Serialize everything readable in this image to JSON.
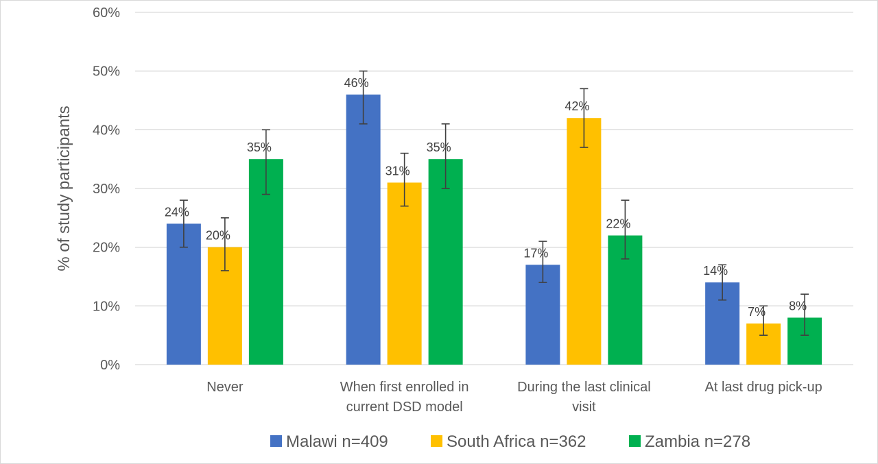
{
  "chart_data": {
    "type": "bar",
    "title": "",
    "xlabel": "",
    "ylabel": "% of study participants",
    "ylim": [
      0,
      60
    ],
    "yticks": [
      "0%",
      "10%",
      "20%",
      "30%",
      "40%",
      "50%",
      "60%"
    ],
    "grid": true,
    "legend_position": "bottom",
    "categories": [
      [
        "Never"
      ],
      [
        "When first enrolled in",
        "current DSD model"
      ],
      [
        "During the last clinical",
        "visit"
      ],
      [
        "At last drug pick-up"
      ]
    ],
    "series": [
      {
        "name": "Malawi n=409",
        "color": "#4472C4",
        "values": [
          24,
          46,
          17,
          14
        ],
        "labels": [
          "24%",
          "46%",
          "17%",
          "14%"
        ],
        "error_low": [
          20,
          41,
          14,
          11
        ],
        "error_high": [
          28,
          50,
          21,
          17
        ]
      },
      {
        "name": "South Africa n=362",
        "color": "#FFC000",
        "values": [
          20,
          31,
          42,
          7
        ],
        "labels": [
          "20%",
          "31%",
          "42%",
          "7%"
        ],
        "error_low": [
          16,
          27,
          37,
          5
        ],
        "error_high": [
          25,
          36,
          47,
          10
        ]
      },
      {
        "name": "Zambia n=278",
        "color": "#00B050",
        "values": [
          35,
          35,
          22,
          8
        ],
        "labels": [
          "35%",
          "35%",
          "22%",
          "8%"
        ],
        "error_low": [
          29,
          30,
          18,
          5
        ],
        "error_high": [
          40,
          41,
          28,
          12
        ]
      }
    ]
  }
}
